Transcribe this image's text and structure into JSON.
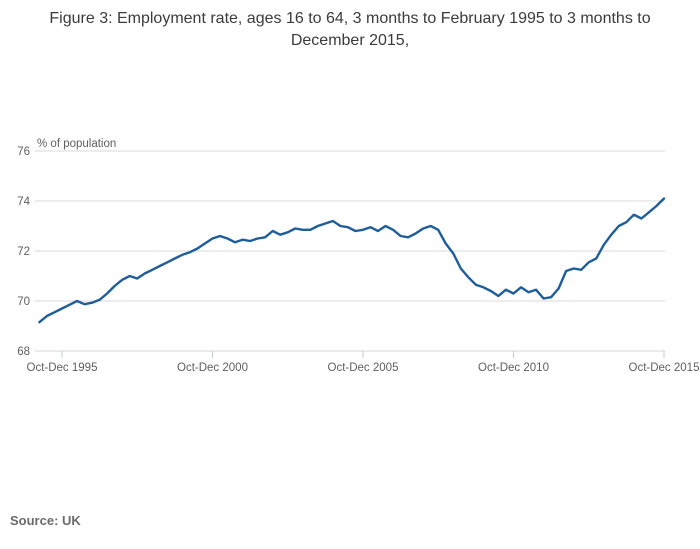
{
  "page": {
    "title": "Figure 3: Employment rate, ages 16 to 64, 3 months to February 1995 to 3 months to December 2015,",
    "source": "Source: UK"
  },
  "chart_data": {
    "type": "line",
    "title": "Figure 3: Employment rate, ages 16 to 64, 3 months to February 1995 to 3 months to December 2015,",
    "xlabel": "",
    "ylabel": "% of population",
    "ylim": [
      68,
      76
    ],
    "y_ticks": [
      68,
      70,
      72,
      74,
      76
    ],
    "y_tick_labels": [
      "68",
      "70",
      "72",
      "74",
      "76"
    ],
    "x_tick_labels": [
      "Oct-Dec 1995",
      "Oct-Dec 2000",
      "Oct-Dec 2005",
      "Oct-Dec 2010",
      "Oct-Dec 2015"
    ],
    "grid": true,
    "legend": false,
    "line_color": "#1f5d9b",
    "series": [
      {
        "name": "Employment rate, ages 16 to 64",
        "first_period": "Dec-Feb 1995",
        "last_period": "Oct-Dec 2015",
        "interval_months": 3,
        "values": [
          69.15,
          69.4,
          69.55,
          69.7,
          69.85,
          70.0,
          69.87,
          69.93,
          70.05,
          70.3,
          70.6,
          70.85,
          71.0,
          70.9,
          71.1,
          71.25,
          71.4,
          71.55,
          71.7,
          71.85,
          71.95,
          72.1,
          72.3,
          72.5,
          72.6,
          72.5,
          72.35,
          72.45,
          72.4,
          72.5,
          72.55,
          72.8,
          72.65,
          72.75,
          72.9,
          72.85,
          72.85,
          73.0,
          73.1,
          73.2,
          73.0,
          72.95,
          72.8,
          72.85,
          72.95,
          72.8,
          73.0,
          72.85,
          72.6,
          72.55,
          72.7,
          72.9,
          73.0,
          72.85,
          72.3,
          71.9,
          71.3,
          70.95,
          70.65,
          70.55,
          70.4,
          70.2,
          70.45,
          70.3,
          70.55,
          70.35,
          70.45,
          70.1,
          70.15,
          70.5,
          71.2,
          71.3,
          71.25,
          71.55,
          71.7,
          72.25,
          72.65,
          73.0,
          73.15,
          73.45,
          73.3,
          73.55,
          73.8,
          74.1
        ]
      }
    ]
  }
}
